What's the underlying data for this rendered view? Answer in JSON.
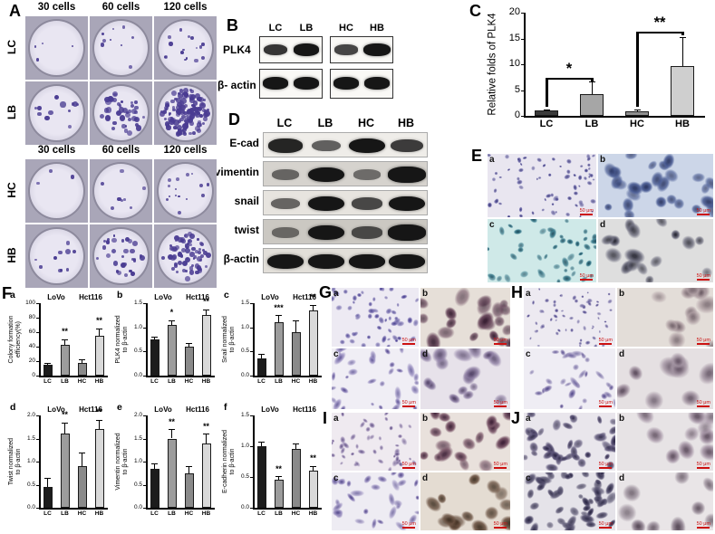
{
  "panels": {
    "A": {
      "label": "A",
      "col_headers": [
        "30 cells",
        "60 cells",
        "120 cells"
      ],
      "blocks": [
        {
          "rows": [
            "LC",
            "LB"
          ],
          "dot_sizes": [
            3,
            4.5
          ],
          "dishes": [
            [
              4,
              9,
              16
            ],
            [
              12,
              40,
              130
            ]
          ]
        },
        {
          "rows": [
            "HC",
            "HB"
          ],
          "dot_sizes": [
            3,
            4
          ],
          "dishes": [
            [
              3,
              8,
              15
            ],
            [
              10,
              30,
              70
            ]
          ]
        }
      ]
    },
    "B": {
      "label": "B",
      "lanes": [
        "LC",
        "LB",
        "HC",
        "HB"
      ],
      "rows": [
        "PLK4",
        "β- actin"
      ],
      "bands": {
        "PLK4": [
          0.8,
          1.0,
          0.7,
          1.05
        ],
        "actin": [
          1,
          1,
          1,
          1
        ]
      }
    },
    "C": {
      "label": "C",
      "chart_data": {
        "type": "bar",
        "categories": [
          "LC",
          "LB",
          "HC",
          "HB"
        ],
        "values": [
          1.0,
          4.2,
          0.9,
          9.7
        ],
        "errors": [
          0.3,
          2.4,
          0.4,
          5.6
        ],
        "colors": [
          "#3a3a3a",
          "#a6a6a6",
          "#8f8f8f",
          "#cfcfcf"
        ],
        "ylabel": "Relative folds of PLK4",
        "ylim": [
          0,
          20
        ],
        "yticks": [
          0,
          5,
          10,
          15,
          20
        ],
        "brackets": [
          {
            "from": 0,
            "to": 1,
            "top": 7.4,
            "label": "*"
          },
          {
            "from": 2,
            "to": 3,
            "top": 16.4,
            "label": "**"
          }
        ]
      }
    },
    "D": {
      "label": "D",
      "lanes": [
        "LC",
        "LB",
        "HC",
        "HB"
      ],
      "rows": [
        {
          "label": "E-cad",
          "bands": [
            0.9,
            0.5,
            1.05,
            0.75
          ],
          "bg": "#efede9"
        },
        {
          "label": "vimentin",
          "bands": [
            0.4,
            1.05,
            0.35,
            1.1
          ],
          "bg": "#d6d3ce"
        },
        {
          "label": "snail",
          "bands": [
            0.45,
            1.05,
            0.65,
            1.05
          ],
          "bg": "#e7e4df"
        },
        {
          "label": "twist",
          "bands": [
            0.35,
            1.05,
            0.6,
            1.1
          ],
          "bg": "#cbc8c2"
        },
        {
          "label": "β-actin",
          "bands": [
            1,
            1,
            1,
            1
          ],
          "bg": "#e2dfd9"
        }
      ]
    },
    "E": {
      "label": "E",
      "images": [
        {
          "label": "a",
          "scale": "50 μm",
          "bg": "#e9e6f0",
          "col": "#6a66a8",
          "nuc": "#3c3a7a",
          "n": 70,
          "s0": 3,
          "s1": 7,
          "el": 0.6
        },
        {
          "label": "b",
          "scale": "50 μm",
          "bg": "#ccd6e8",
          "col": "#4a5c94",
          "nuc": "#24305e",
          "n": 26,
          "s0": 10,
          "s1": 20,
          "el": 0.5
        },
        {
          "label": "c",
          "scale": "50 μm",
          "bg": "#cfe9e8",
          "col": "#3f7f90",
          "nuc": "#1f4f60",
          "n": 45,
          "s0": 5,
          "s1": 10,
          "el": 0.8
        },
        {
          "label": "d",
          "scale": "50 μm",
          "bg": "#dedede",
          "col": "#6f6f80",
          "nuc": "#2c2c38",
          "n": 16,
          "s0": 12,
          "s1": 22,
          "el": 0.5
        }
      ]
    },
    "F": {
      "label": "F",
      "chart_data": [
        {
          "type": "bar",
          "letter": "a",
          "ylabel": "Colony formation\nefficiency(%)",
          "groups": [
            "LoVo",
            "Hct116"
          ],
          "categories": [
            "LC",
            "LB",
            "HC",
            "HB"
          ],
          "values": [
            15,
            42,
            18,
            55
          ],
          "errors": [
            3,
            8,
            4,
            10
          ],
          "stars": [
            "",
            "**",
            "",
            "**"
          ],
          "colors": [
            "#1c1c1c",
            "#9c9c9c",
            "#8a8a8a",
            "#d9d9d9"
          ],
          "ylim": [
            0,
            100
          ],
          "yticks": [
            0,
            20,
            40,
            60,
            80,
            100
          ]
        },
        {
          "type": "bar",
          "letter": "b",
          "ylabel": "PLK4 normalized\nto β-actin",
          "groups": [
            "LoVo",
            "Hct116"
          ],
          "categories": [
            "LC",
            "LB",
            "HC",
            "HB"
          ],
          "values": [
            0.75,
            1.05,
            0.6,
            1.25
          ],
          "errors": [
            0.06,
            0.1,
            0.08,
            0.12
          ],
          "stars": [
            "",
            "*",
            "",
            "**"
          ],
          "colors": [
            "#1c1c1c",
            "#9c9c9c",
            "#8a8a8a",
            "#d9d9d9"
          ],
          "ylim": [
            0,
            1.5
          ],
          "yticks": [
            0,
            0.5,
            1,
            1.5
          ]
        },
        {
          "type": "bar",
          "letter": "c",
          "ylabel": "Snail normalized\nto β-actin",
          "groups": [
            "LoVo",
            "Hct116"
          ],
          "categories": [
            "LC",
            "LB",
            "HC",
            "HB"
          ],
          "values": [
            0.35,
            1.1,
            0.9,
            1.35
          ],
          "errors": [
            0.1,
            0.15,
            0.25,
            0.12
          ],
          "stars": [
            "",
            "***",
            "",
            "**"
          ],
          "colors": [
            "#1c1c1c",
            "#9c9c9c",
            "#8a8a8a",
            "#d9d9d9"
          ],
          "ylim": [
            0,
            1.5
          ],
          "yticks": [
            0,
            0.5,
            1,
            1.5
          ]
        },
        {
          "type": "bar",
          "letter": "d",
          "ylabel": "Twist normalized\nto β-actin",
          "groups": [
            "LoVo",
            "Hct116"
          ],
          "categories": [
            "LC",
            "LB",
            "HC",
            "HB"
          ],
          "values": [
            0.45,
            1.6,
            0.9,
            1.7
          ],
          "errors": [
            0.2,
            0.25,
            0.3,
            0.2
          ],
          "stars": [
            "",
            "**",
            "",
            "**"
          ],
          "colors": [
            "#1c1c1c",
            "#9c9c9c",
            "#8a8a8a",
            "#d9d9d9"
          ],
          "ylim": [
            0,
            2
          ],
          "yticks": [
            0,
            0.5,
            1,
            1.5,
            2
          ]
        },
        {
          "type": "bar",
          "letter": "e",
          "ylabel": "Vimentin normalized\nto β-actin",
          "groups": [
            "LoVo",
            "Hct116"
          ],
          "categories": [
            "LC",
            "LB",
            "HC",
            "HB"
          ],
          "values": [
            0.85,
            1.5,
            0.75,
            1.4
          ],
          "errors": [
            0.12,
            0.2,
            0.15,
            0.2
          ],
          "stars": [
            "",
            "**",
            "",
            "**"
          ],
          "colors": [
            "#1c1c1c",
            "#9c9c9c",
            "#8a8a8a",
            "#d9d9d9"
          ],
          "ylim": [
            0,
            2
          ],
          "yticks": [
            0,
            0.5,
            1,
            1.5,
            2
          ]
        },
        {
          "type": "bar",
          "letter": "f",
          "ylabel": "E-cadherin normalized\nto β-actin",
          "groups": [
            "LoVo",
            "Hct116"
          ],
          "categories": [
            "LC",
            "LB",
            "HC",
            "HB"
          ],
          "values": [
            1.0,
            0.45,
            0.95,
            0.6
          ],
          "errors": [
            0.08,
            0.06,
            0.1,
            0.08
          ],
          "stars": [
            "",
            "**",
            "",
            "**"
          ],
          "colors": [
            "#1c1c1c",
            "#9c9c9c",
            "#8a8a8a",
            "#d9d9d9"
          ],
          "ylim": [
            0,
            1.5
          ],
          "yticks": [
            0,
            0.5,
            1,
            1.5
          ]
        }
      ]
    },
    "G": {
      "label": "G",
      "images": [
        {
          "label": "a",
          "scale": "50 μm",
          "bg": "#edeaf3",
          "col": "#8177b5",
          "nuc": "#4a4390",
          "n": 55,
          "s0": 4,
          "s1": 8,
          "el": 0.7
        },
        {
          "label": "b",
          "scale": "50 μm",
          "bg": "#e6dfd8",
          "col": "#6b4a5e",
          "nuc": "#3a2034",
          "n": 20,
          "s0": 12,
          "s1": 22,
          "el": 0.5
        },
        {
          "label": "c",
          "scale": "50 μm",
          "bg": "#f0eef5",
          "col": "#9a8fc2",
          "nuc": "#5a4f92",
          "n": 32,
          "s0": 5,
          "s1": 11,
          "el": 1.6
        },
        {
          "label": "d",
          "scale": "50 μm",
          "bg": "#e7e2ea",
          "col": "#8a7aa0",
          "nuc": "#4a3a60",
          "n": 16,
          "s0": 12,
          "s1": 22,
          "el": 0.6
        }
      ]
    },
    "H": {
      "label": "H",
      "images": [
        {
          "label": "a",
          "scale": "50 μm",
          "bg": "#edeaf1",
          "col": "#8a82b2",
          "nuc": "#4a4488",
          "n": 60,
          "s0": 3,
          "s1": 6,
          "el": 0.6
        },
        {
          "label": "b",
          "scale": "50 μm",
          "bg": "#e3ddd8",
          "col": "#b0a0a4",
          "nuc": "#706068",
          "n": 12,
          "s0": 16,
          "s1": 28,
          "el": 0.4
        },
        {
          "label": "c",
          "scale": "50 μm",
          "bg": "#efedf4",
          "col": "#9a90bb",
          "nuc": "#5a5090",
          "n": 30,
          "s0": 5,
          "s1": 10,
          "el": 1.6
        },
        {
          "label": "d",
          "scale": "50 μm",
          "bg": "#e5e0e2",
          "col": "#a394a2",
          "nuc": "#5f4f60",
          "n": 9,
          "s0": 18,
          "s1": 30,
          "el": 0.4
        }
      ]
    },
    "I": {
      "label": "I",
      "images": [
        {
          "label": "a",
          "scale": "50 μm",
          "bg": "#efeaf0",
          "col": "#a090b8",
          "nuc": "#604f85",
          "n": 45,
          "s0": 4,
          "s1": 8,
          "el": 0.8
        },
        {
          "label": "b",
          "scale": "50 μm",
          "bg": "#e9e1dc",
          "col": "#7a5668",
          "nuc": "#42243a",
          "n": 18,
          "s0": 12,
          "s1": 20,
          "el": 0.5
        },
        {
          "label": "c",
          "scale": "50 μm",
          "bg": "#eeecf3",
          "col": "#9a8fc0",
          "nuc": "#5a4f90",
          "n": 30,
          "s0": 5,
          "s1": 11,
          "el": 1.6
        },
        {
          "label": "d",
          "scale": "50 μm",
          "bg": "#e4dcd2",
          "col": "#6b5242",
          "nuc": "#3a2a1c",
          "n": 14,
          "s0": 13,
          "s1": 23,
          "el": 0.6
        }
      ]
    },
    "J": {
      "label": "J",
      "images": [
        {
          "label": "a",
          "scale": "50 μm",
          "bg": "#e9e6ec",
          "col": "#5c5478",
          "nuc": "#2e2848",
          "n": 40,
          "s0": 7,
          "s1": 13,
          "el": 1.0
        },
        {
          "label": "b",
          "scale": "50 μm",
          "bg": "#e7e3e5",
          "col": "#a898a8",
          "nuc": "#685868",
          "n": 10,
          "s0": 16,
          "s1": 26,
          "el": 0.4
        },
        {
          "label": "c",
          "scale": "50 μm",
          "bg": "#e5e3e9",
          "col": "#55506e",
          "nuc": "#282442",
          "n": 48,
          "s0": 7,
          "s1": 13,
          "el": 1.0
        },
        {
          "label": "d",
          "scale": "50 μm",
          "bg": "#e9e5e7",
          "col": "#978a97",
          "nuc": "#584a58",
          "n": 9,
          "s0": 17,
          "s1": 28,
          "el": 0.4
        }
      ]
    }
  }
}
